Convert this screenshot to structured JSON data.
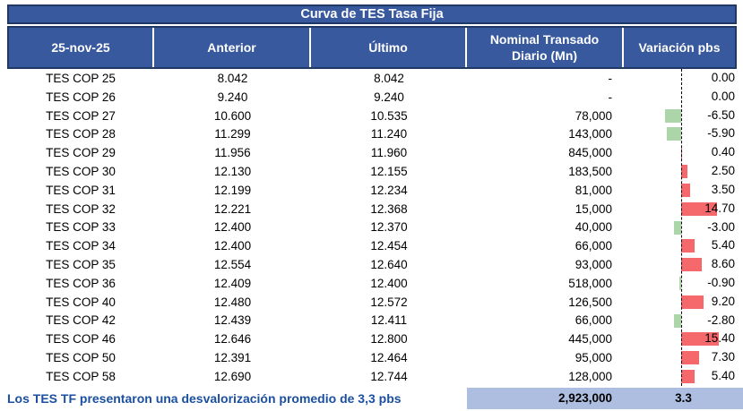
{
  "title": "Curva de TES Tasa Fija",
  "header": {
    "date": "25-nov-25",
    "anterior": "Anterior",
    "ultimo": "Último",
    "nominal": "Nominal Transado Diario (Mn)",
    "variacion": "Variación pbs"
  },
  "rows": [
    {
      "label": "TES COP 25",
      "anterior": "8.042",
      "ultimo": "8.042",
      "nominal": "-",
      "variacion": "0.00",
      "var_value": 0.0
    },
    {
      "label": "TES COP 26",
      "anterior": "9.240",
      "ultimo": "9.240",
      "nominal": "-",
      "variacion": "0.00",
      "var_value": 0.0
    },
    {
      "label": "TES COP 27",
      "anterior": "10.600",
      "ultimo": "10.535",
      "nominal": "78,000",
      "variacion": "-6.50",
      "var_value": -6.5
    },
    {
      "label": "TES COP 28",
      "anterior": "11.299",
      "ultimo": "11.240",
      "nominal": "143,000",
      "variacion": "-5.90",
      "var_value": -5.9
    },
    {
      "label": "TES COP 29",
      "anterior": "11.956",
      "ultimo": "11.960",
      "nominal": "845,000",
      "variacion": "0.40",
      "var_value": 0.4
    },
    {
      "label": "TES COP 30",
      "anterior": "12.130",
      "ultimo": "12.155",
      "nominal": "183,500",
      "variacion": "2.50",
      "var_value": 2.5
    },
    {
      "label": "TES COP 31",
      "anterior": "12.199",
      "ultimo": "12.234",
      "nominal": "81,000",
      "variacion": "3.50",
      "var_value": 3.5
    },
    {
      "label": "TES COP 32",
      "anterior": "12.221",
      "ultimo": "12.368",
      "nominal": "15,000",
      "variacion": "14.70",
      "var_value": 14.7
    },
    {
      "label": "TES COP 33",
      "anterior": "12.400",
      "ultimo": "12.370",
      "nominal": "40,000",
      "variacion": "-3.00",
      "var_value": -3.0
    },
    {
      "label": "TES COP 34",
      "anterior": "12.400",
      "ultimo": "12.454",
      "nominal": "66,000",
      "variacion": "5.40",
      "var_value": 5.4
    },
    {
      "label": "TES COP 35",
      "anterior": "12.554",
      "ultimo": "12.640",
      "nominal": "93,000",
      "variacion": "8.60",
      "var_value": 8.6
    },
    {
      "label": "TES COP 36",
      "anterior": "12.409",
      "ultimo": "12.400",
      "nominal": "518,000",
      "variacion": "-0.90",
      "var_value": -0.9
    },
    {
      "label": "TES COP 40",
      "anterior": "12.480",
      "ultimo": "12.572",
      "nominal": "126,500",
      "variacion": "9.20",
      "var_value": 9.2
    },
    {
      "label": "TES COP 42",
      "anterior": "12.439",
      "ultimo": "12.411",
      "nominal": "66,000",
      "variacion": "-2.80",
      "var_value": -2.8
    },
    {
      "label": "TES COP 46",
      "anterior": "12.646",
      "ultimo": "12.800",
      "nominal": "445,000",
      "variacion": "15.40",
      "var_value": 15.4
    },
    {
      "label": "TES COP 50",
      "anterior": "12.391",
      "ultimo": "12.464",
      "nominal": "95,000",
      "variacion": "7.30",
      "var_value": 7.3
    },
    {
      "label": "TES COP 58",
      "anterior": "12.690",
      "ultimo": "12.744",
      "nominal": "128,000",
      "variacion": "5.40",
      "var_value": 5.4
    }
  ],
  "total": {
    "nominal": "2,923,000",
    "variacion": "3.3"
  },
  "footer_note": "Los TES TF presentaron una desvalorización promedio de 3,3 pbs",
  "colors": {
    "header_bg": "#38599E",
    "border_navy": "#1F3864",
    "positive_bar": "#F5686C",
    "negative_bar": "#ACD5AA",
    "total_bg": "#AEBEE1",
    "footer_text": "#1B4FA0"
  },
  "chart_data": {
    "type": "table",
    "title": "Curva de TES Tasa Fija",
    "date": "25-nov-25",
    "columns": [
      "25-nov-25",
      "Anterior",
      "Último",
      "Nominal Transado Diario (Mn)",
      "Variación pbs"
    ],
    "rows": [
      [
        "TES COP 25",
        8.042,
        8.042,
        null,
        0.0
      ],
      [
        "TES COP 26",
        9.24,
        9.24,
        null,
        0.0
      ],
      [
        "TES COP 27",
        10.6,
        10.535,
        78000,
        -6.5
      ],
      [
        "TES COP 28",
        11.299,
        11.24,
        143000,
        -5.9
      ],
      [
        "TES COP 29",
        11.956,
        11.96,
        845000,
        0.4
      ],
      [
        "TES COP 30",
        12.13,
        12.155,
        183500,
        2.5
      ],
      [
        "TES COP 31",
        12.199,
        12.234,
        81000,
        3.5
      ],
      [
        "TES COP 32",
        12.221,
        12.368,
        15000,
        14.7
      ],
      [
        "TES COP 33",
        12.4,
        12.37,
        40000,
        -3.0
      ],
      [
        "TES COP 34",
        12.4,
        12.454,
        66000,
        5.4
      ],
      [
        "TES COP 35",
        12.554,
        12.64,
        93000,
        8.6
      ],
      [
        "TES COP 36",
        12.409,
        12.4,
        518000,
        -0.9
      ],
      [
        "TES COP 40",
        12.48,
        12.572,
        126500,
        9.2
      ],
      [
        "TES COP 42",
        12.439,
        12.411,
        66000,
        -2.8
      ],
      [
        "TES COP 46",
        12.646,
        12.8,
        445000,
        15.4
      ],
      [
        "TES COP 50",
        12.391,
        12.464,
        95000,
        7.3
      ],
      [
        "TES COP 58",
        12.69,
        12.744,
        128000,
        5.4
      ]
    ],
    "totals": {
      "nominal_transado": 2923000,
      "variacion_promedio_pbs": 3.3
    },
    "embedded_bar_chart": {
      "type": "bar",
      "orientation": "horizontal",
      "column": "Variación pbs",
      "values": [
        0.0,
        0.0,
        -6.5,
        -5.9,
        0.4,
        2.5,
        3.5,
        14.7,
        -3.0,
        5.4,
        8.6,
        -0.9,
        9.2,
        -2.8,
        15.4,
        7.3,
        5.4
      ],
      "positive_color": "#F5686C",
      "negative_color": "#ACD5AA",
      "zero_axis": "dashed black vertical line"
    }
  }
}
